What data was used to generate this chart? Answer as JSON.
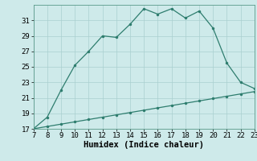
{
  "x_main": [
    7,
    8,
    9,
    10,
    11,
    12,
    13,
    14,
    15,
    16,
    17,
    18,
    19,
    20,
    21,
    22,
    23
  ],
  "y_main": [
    17,
    18.5,
    22,
    25.2,
    27,
    29,
    28.8,
    30.5,
    32.5,
    31.8,
    32.5,
    31.3,
    32.2,
    30.0,
    25.5,
    23,
    22.2
  ],
  "x_lower": [
    7,
    8,
    9,
    10,
    11,
    12,
    13,
    14,
    15,
    16,
    17,
    18,
    19,
    20,
    21,
    22,
    23
  ],
  "y_lower": [
    17.0,
    17.3,
    17.6,
    17.9,
    18.2,
    18.5,
    18.8,
    19.1,
    19.4,
    19.7,
    20.0,
    20.3,
    20.6,
    20.9,
    21.2,
    21.5,
    21.8
  ],
  "line_color": "#2e7d6e",
  "bg_color": "#ceeaea",
  "grid_color": "#aacfcf",
  "xlabel": "Humidex (Indice chaleur)",
  "xlim": [
    7,
    23
  ],
  "ylim": [
    17,
    33
  ],
  "xticks": [
    7,
    8,
    9,
    10,
    11,
    12,
    13,
    14,
    15,
    16,
    17,
    18,
    19,
    20,
    21,
    22,
    23
  ],
  "yticks": [
    17,
    19,
    21,
    23,
    25,
    27,
    29,
    31
  ],
  "xlabel_fontsize": 7.5,
  "tick_fontsize": 6.5,
  "marker_size": 2.5,
  "linewidth": 0.9
}
